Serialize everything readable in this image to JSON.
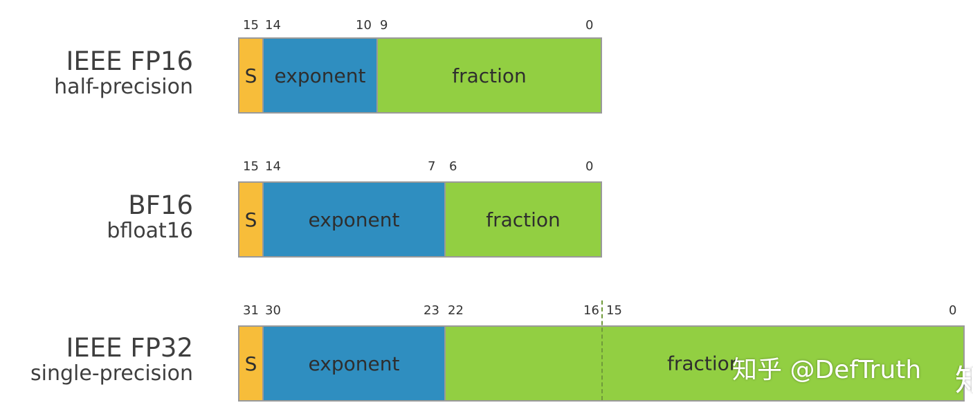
{
  "formats": [
    {
      "id": "fp16",
      "name": "IEEE FP16",
      "subtitle": "half-precision",
      "sign_label": "S",
      "exponent_label": "exponent",
      "fraction_label": "fraction",
      "bits": {
        "sign": "15",
        "exp_start": "14",
        "exp_end": "10",
        "frac_start": "9",
        "frac_end": "0"
      }
    },
    {
      "id": "bf16",
      "name": "BF16",
      "subtitle": "bfloat16",
      "sign_label": "S",
      "exponent_label": "exponent",
      "fraction_label": "fraction",
      "bits": {
        "sign": "15",
        "exp_start": "14",
        "exp_end": "7",
        "frac_start": "6",
        "frac_end": "0"
      }
    },
    {
      "id": "fp32",
      "name": "IEEE FP32",
      "subtitle": "single-precision",
      "sign_label": "S",
      "exponent_label": "exponent",
      "fraction_label": "fraction",
      "bits": {
        "sign": "31",
        "exp_start": "30",
        "exp_end": "23",
        "frac_start": "22",
        "mid_hi": "16",
        "mid_lo": "15",
        "frac_end": "0"
      }
    }
  ],
  "colors": {
    "sign": "#f7bd3a",
    "exponent": "#2f8ec0",
    "fraction": "#92cf42"
  },
  "watermark": {
    "text": "知乎 @DefTruth",
    "cut_glyph": "知"
  }
}
